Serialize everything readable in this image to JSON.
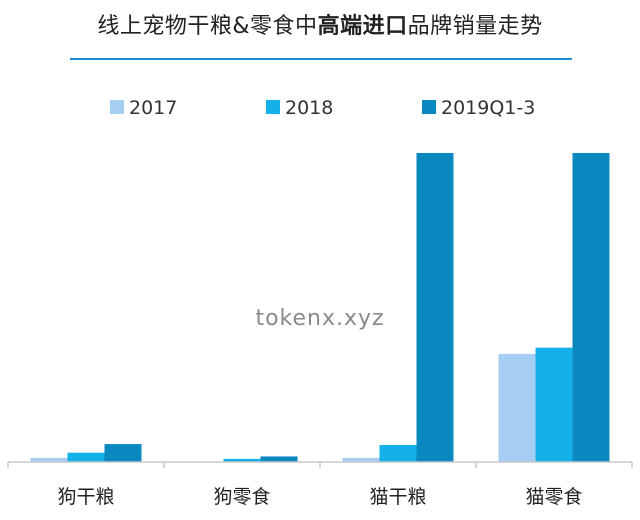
{
  "chart_data": {
    "type": "bar",
    "title_parts": [
      {
        "text": "线上宠物干粮&零食中",
        "bold": false
      },
      {
        "text": "高端进口",
        "bold": true
      },
      {
        "text": "品牌销量走势",
        "bold": false
      }
    ],
    "categories": [
      "狗干粮",
      "狗零食",
      "猫干粮",
      "猫零食"
    ],
    "series": [
      {
        "name": "2017",
        "color": "#a6cdf3",
        "values": [
          1.3,
          0,
          1.3,
          35
        ]
      },
      {
        "name": "2018",
        "color": "#14b0ea",
        "values": [
          3,
          1,
          5.5,
          37
        ]
      },
      {
        "name": "2019Q1-3",
        "color": "#0a88c0",
        "values": [
          5.8,
          1.8,
          100,
          100
        ]
      }
    ],
    "ylim": [
      0,
      100
    ],
    "legend_position": "top",
    "grid": false
  },
  "watermark": "tokenx.xyz"
}
